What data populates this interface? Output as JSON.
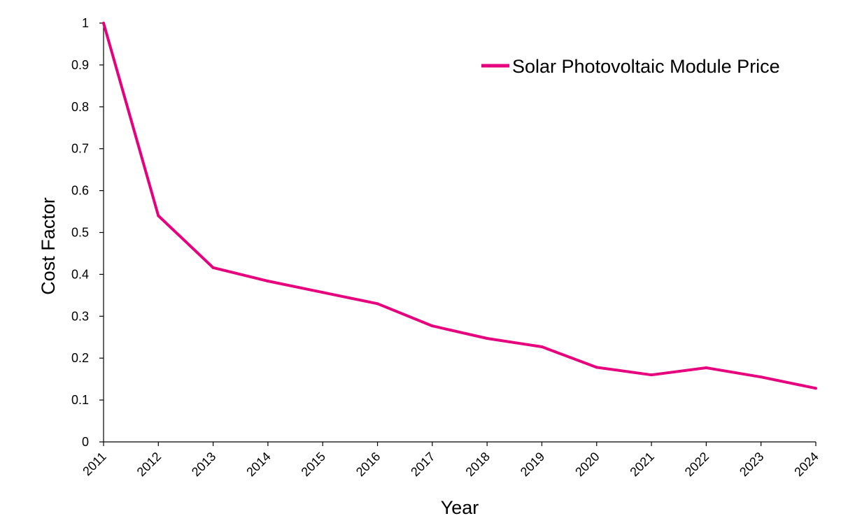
{
  "chart_data": {
    "type": "line",
    "title": "",
    "xlabel": "Year",
    "ylabel": "Cost Factor",
    "categories": [
      "2011",
      "2012",
      "2013",
      "2014",
      "2015",
      "2016",
      "2017",
      "2018",
      "2019",
      "2020",
      "2021",
      "2022",
      "2023",
      "2024"
    ],
    "series": [
      {
        "name": "Solar Photovoltaic Module Price",
        "color": "#E6007E",
        "values": [
          1.0,
          0.54,
          0.416,
          0.384,
          0.357,
          0.33,
          0.277,
          0.247,
          0.227,
          0.178,
          0.16,
          0.177,
          0.155,
          0.128
        ]
      }
    ],
    "ylim": [
      0,
      1
    ],
    "yticks": [
      "0",
      "0.1",
      "0.2",
      "0.3",
      "0.4",
      "0.5",
      "0.6",
      "0.7",
      "0.8",
      "0.9",
      "1"
    ],
    "grid": false,
    "legend_position": "top-right"
  }
}
